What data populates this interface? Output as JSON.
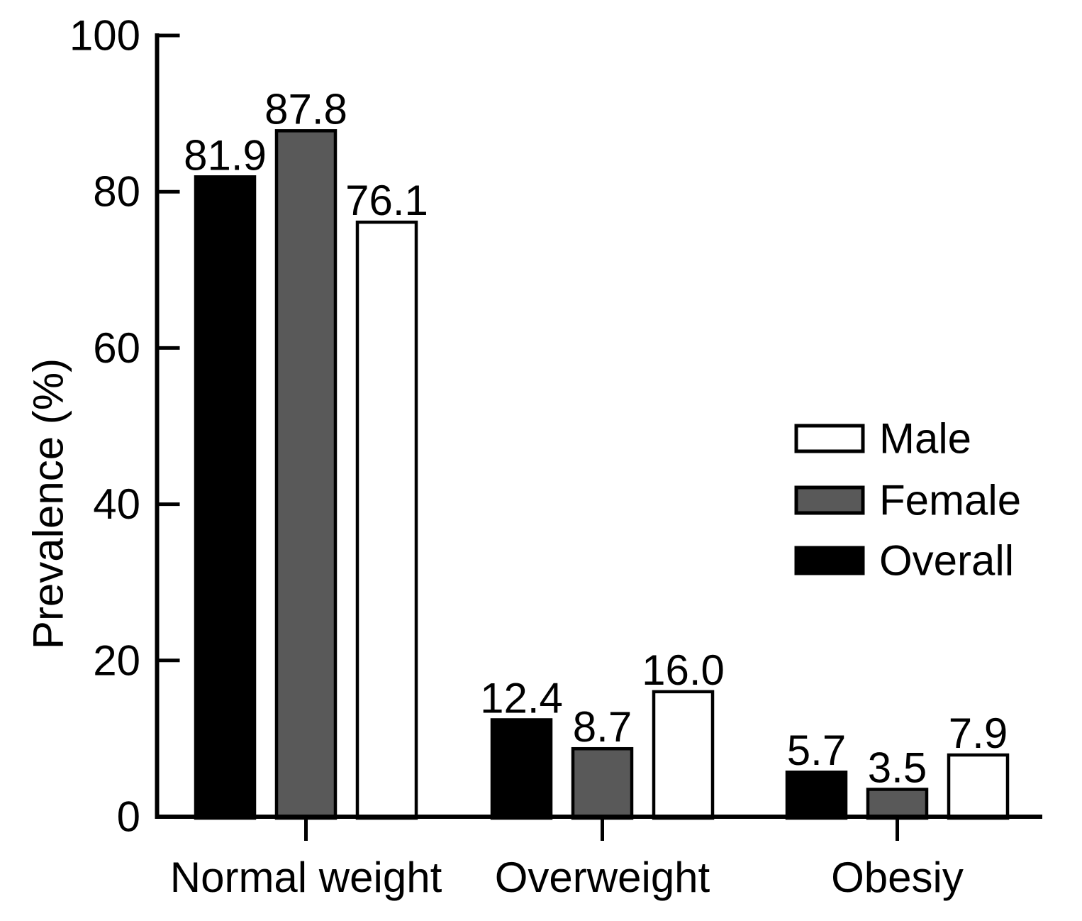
{
  "figure": {
    "background": "#ffffff",
    "text_color": "#000000",
    "axis_color": "#000000",
    "bar_edge_color": "#000000"
  },
  "chart_data": {
    "type": "bar",
    "title": "",
    "xlabel": "",
    "ylabel": "Prevalence (%)",
    "categories": [
      "Normal weight",
      "Overweight",
      "Obesiy"
    ],
    "series": [
      {
        "name": "Overall",
        "color": "#000000",
        "values": [
          81.9,
          12.4,
          5.7
        ],
        "labels": [
          "81.9",
          "12.4",
          "5.7"
        ]
      },
      {
        "name": "Female",
        "color": "#595959",
        "values": [
          87.8,
          8.7,
          3.5
        ],
        "labels": [
          "87.8",
          "8.7",
          "3.5"
        ]
      },
      {
        "name": "Male",
        "color": "#ffffff",
        "values": [
          76.1,
          16.0,
          7.9
        ],
        "labels": [
          "76.1",
          "16.0",
          "7.9"
        ]
      }
    ],
    "legend": {
      "position": "center-right",
      "entries": [
        {
          "label": "Male",
          "color": "#ffffff"
        },
        {
          "label": "Female",
          "color": "#595959"
        },
        {
          "label": "Overall",
          "color": "#000000"
        }
      ]
    },
    "ylim": [
      0,
      100
    ],
    "yticks": [
      "0",
      "20",
      "40",
      "60",
      "80",
      "100"
    ],
    "grid": false,
    "value_labels_shown": true,
    "bar_labels_decimal_places": 1
  }
}
